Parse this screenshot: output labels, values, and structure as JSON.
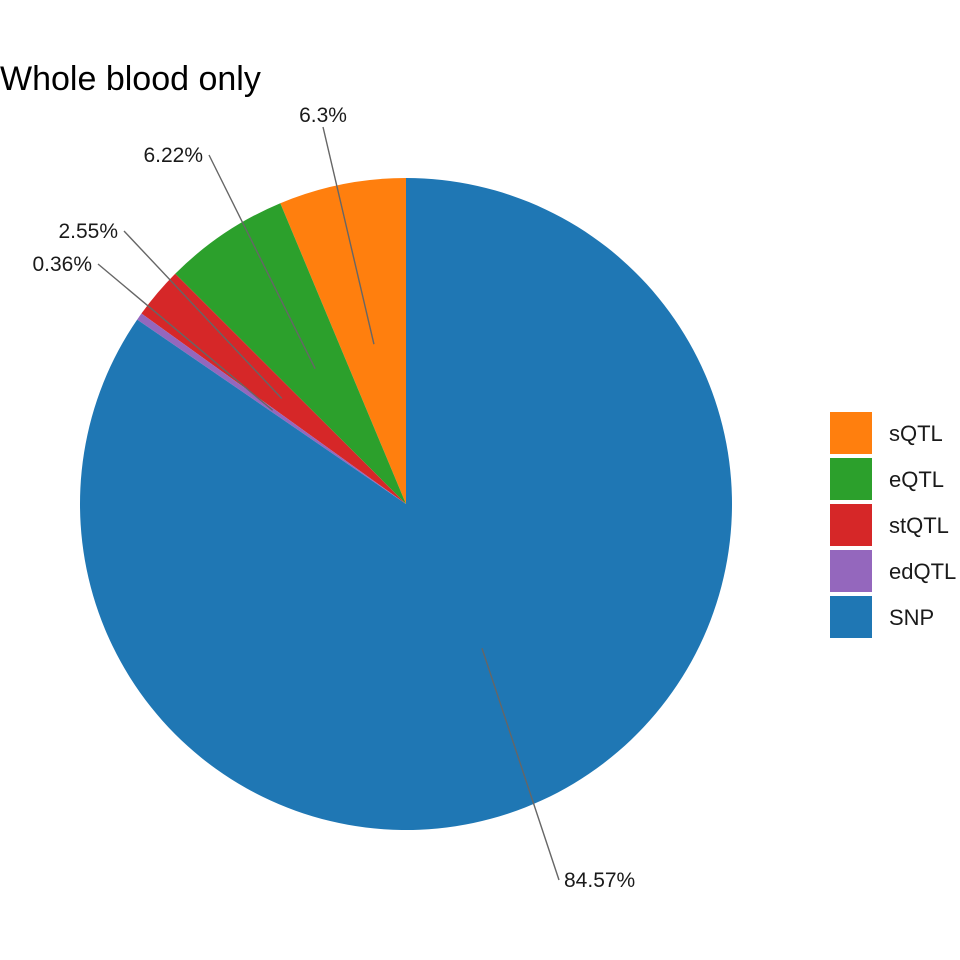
{
  "chart_data": {
    "type": "pie",
    "title": "Whole blood only",
    "start_angle_deg": 0,
    "direction": "counterclockwise",
    "slices": [
      {
        "label": "sQTL",
        "value": 6.3,
        "pct_label": "6.3%",
        "color": "#ff7f0e"
      },
      {
        "label": "eQTL",
        "value": 6.22,
        "pct_label": "6.22%",
        "color": "#2ca02c"
      },
      {
        "label": "stQTL",
        "value": 2.55,
        "pct_label": "2.55%",
        "color": "#d62728"
      },
      {
        "label": "edQTL",
        "value": 0.36,
        "pct_label": "0.36%",
        "color": "#9467bd"
      },
      {
        "label": "SNP",
        "value": 84.57,
        "pct_label": "84.57%",
        "color": "#1f77b4"
      }
    ],
    "legend": {
      "position": "right",
      "entries": [
        "sQTL",
        "eQTL",
        "stQTL",
        "edQTL",
        "SNP"
      ]
    }
  }
}
